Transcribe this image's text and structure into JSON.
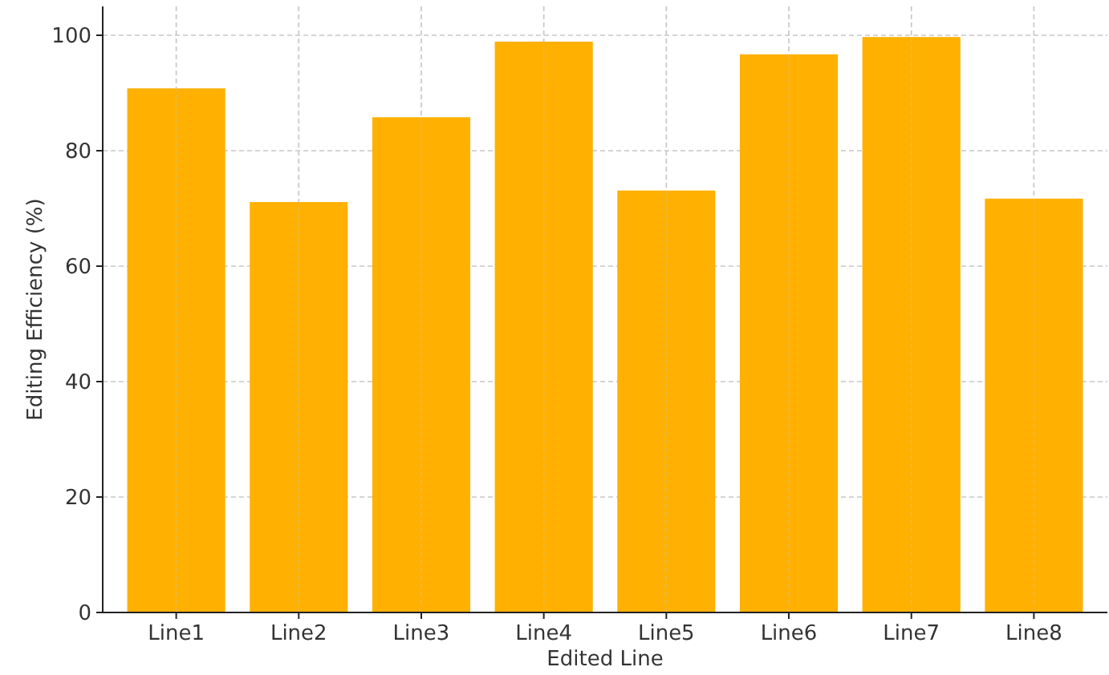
{
  "chart_data": {
    "type": "bar",
    "xlabel": "Edited Line",
    "ylabel": "Editing Efficiency (%)",
    "categories": [
      "Line1",
      "Line2",
      "Line3",
      "Line4",
      "Line5",
      "Line6",
      "Line7",
      "Line8"
    ],
    "values": [
      90.8,
      71.1,
      85.8,
      98.9,
      73.1,
      96.7,
      99.7,
      71.7
    ],
    "color": "#ffb000",
    "ylim": [
      0,
      105
    ],
    "yticks": [
      0,
      20,
      40,
      60,
      80,
      100
    ],
    "grid": true
  }
}
